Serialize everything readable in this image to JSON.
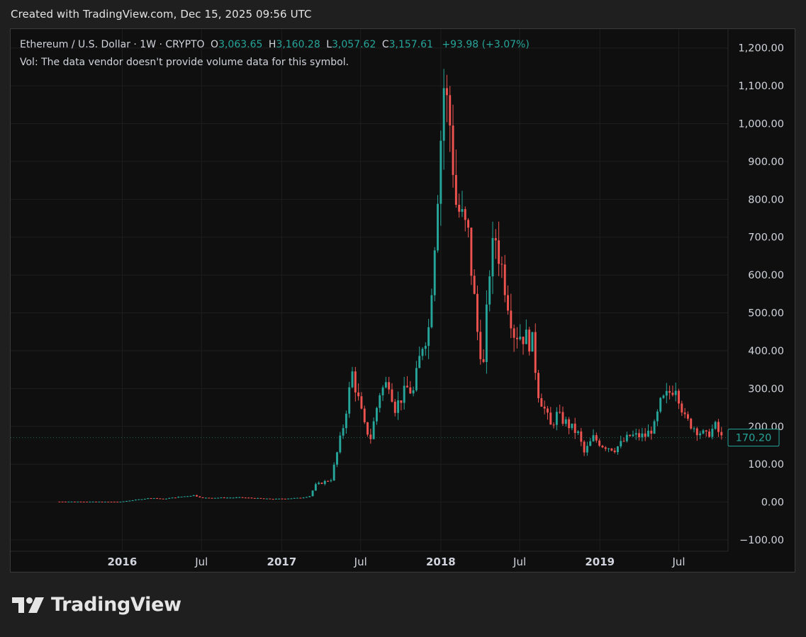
{
  "header": {
    "created_text": "Created with TradingView.com, Dec 15, 2025 09:56 UTC"
  },
  "legend": {
    "symbol": "Ethereum / U.S. Dollar · 1W · CRYPTO",
    "o_label": "O",
    "o_value": "3,063.65",
    "h_label": "H",
    "h_value": "3,160.28",
    "l_label": "L",
    "l_value": "3,057.62",
    "c_label": "C",
    "c_value": "3,157.61",
    "change": "+93.98 (+3.07%)",
    "volume_note": "Vol: The data vendor doesn't provide volume data for this symbol."
  },
  "footer": {
    "brand": "TradingView"
  },
  "colors": {
    "up": "#26a69a",
    "down": "#ef5350",
    "background": "#0f0f0f",
    "grid": "#1e1e1e",
    "text": "#d1d4dc"
  },
  "chart_data": {
    "type": "candlestick",
    "symbol": "ETH/USD",
    "interval": "1W",
    "ylim": [
      -130,
      1250
    ],
    "y_ticks": [
      "1,200.00",
      "1,100.00",
      "1,000.00",
      "900.00",
      "800.00",
      "700.00",
      "600.00",
      "500.00",
      "400.00",
      "300.00",
      "200.00",
      "100.00",
      "0.00",
      "−100.00"
    ],
    "y_tick_values": [
      1200,
      1100,
      1000,
      900,
      800,
      700,
      600,
      500,
      400,
      300,
      200,
      100,
      0,
      -100
    ],
    "x_ticks": [
      "2016",
      "Jul",
      "2017",
      "Jul",
      "2018",
      "Jul",
      "2019",
      "Jul"
    ],
    "x_tick_dates": [
      "2016-01-01",
      "2016-07-01",
      "2017-01-01",
      "2017-07-01",
      "2018-01-01",
      "2018-07-01",
      "2019-01-01",
      "2019-07-01"
    ],
    "x_range": [
      "2015-04-20",
      "2019-10-22"
    ],
    "grid": true,
    "last_price_label": "170.20",
    "last_price": 170.2,
    "anchors": [
      [
        "2015-08-10",
        1.2
      ],
      [
        "2015-12-28",
        0.9
      ],
      [
        "2016-03-07",
        11
      ],
      [
        "2016-04-04",
        8.5
      ],
      [
        "2016-06-13",
        18
      ],
      [
        "2016-07-04",
        11
      ],
      [
        "2016-10-01",
        12
      ],
      [
        "2016-12-12",
        8
      ],
      [
        "2017-02-13",
        11
      ],
      [
        "2017-03-06",
        16
      ],
      [
        "2017-03-20",
        45
      ],
      [
        "2017-04-24",
        60
      ],
      [
        "2017-05-22",
        200
      ],
      [
        "2017-06-12",
        340
      ],
      [
        "2017-07-10",
        200
      ],
      [
        "2017-07-24",
        170
      ],
      [
        "2017-08-14",
        290
      ],
      [
        "2017-09-04",
        320
      ],
      [
        "2017-09-18",
        250
      ],
      [
        "2017-10-16",
        300
      ],
      [
        "2017-10-30",
        290
      ],
      [
        "2017-11-20",
        420
      ],
      [
        "2017-12-04",
        460
      ],
      [
        "2017-12-18",
        700
      ],
      [
        "2018-01-08",
        1100
      ],
      [
        "2018-01-22",
        1000
      ],
      [
        "2018-02-05",
        790
      ],
      [
        "2018-03-05",
        700
      ],
      [
        "2018-03-26",
        450
      ],
      [
        "2018-04-09",
        360
      ],
      [
        "2018-04-23",
        620
      ],
      [
        "2018-05-07",
        700
      ],
      [
        "2018-05-28",
        580
      ],
      [
        "2018-06-18",
        450
      ],
      [
        "2018-07-09",
        440
      ],
      [
        "2018-07-30",
        420
      ],
      [
        "2018-08-13",
        290
      ],
      [
        "2018-09-10",
        200
      ],
      [
        "2018-09-24",
        230
      ],
      [
        "2018-10-15",
        210
      ],
      [
        "2018-11-12",
        180
      ],
      [
        "2018-11-26",
        130
      ],
      [
        "2018-12-17",
        170
      ],
      [
        "2019-01-07",
        150
      ],
      [
        "2019-02-04",
        140
      ],
      [
        "2019-03-11",
        175
      ],
      [
        "2019-04-15",
        175
      ],
      [
        "2019-05-06",
        200
      ],
      [
        "2019-05-20",
        260
      ],
      [
        "2019-06-24",
        310
      ],
      [
        "2019-07-15",
        220
      ],
      [
        "2019-08-12",
        190
      ],
      [
        "2019-09-02",
        175
      ],
      [
        "2019-09-23",
        200
      ],
      [
        "2019-10-07",
        170
      ]
    ]
  }
}
